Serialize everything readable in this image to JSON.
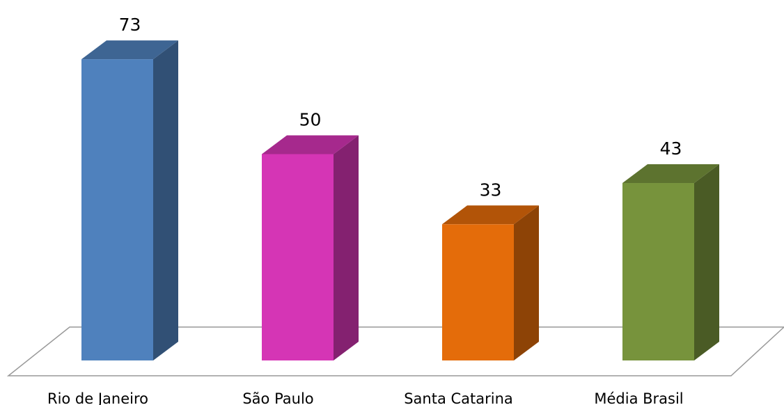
{
  "chart_data": {
    "type": "bar3d",
    "categories": [
      "Rio de Janeiro",
      "São Paulo",
      "Santa Catarina",
      "Média Brasil"
    ],
    "values": [
      73,
      50,
      33,
      43
    ],
    "colors": [
      "#4f81bd",
      "#d535b5",
      "#e46c0a",
      "#77933c"
    ]
  }
}
